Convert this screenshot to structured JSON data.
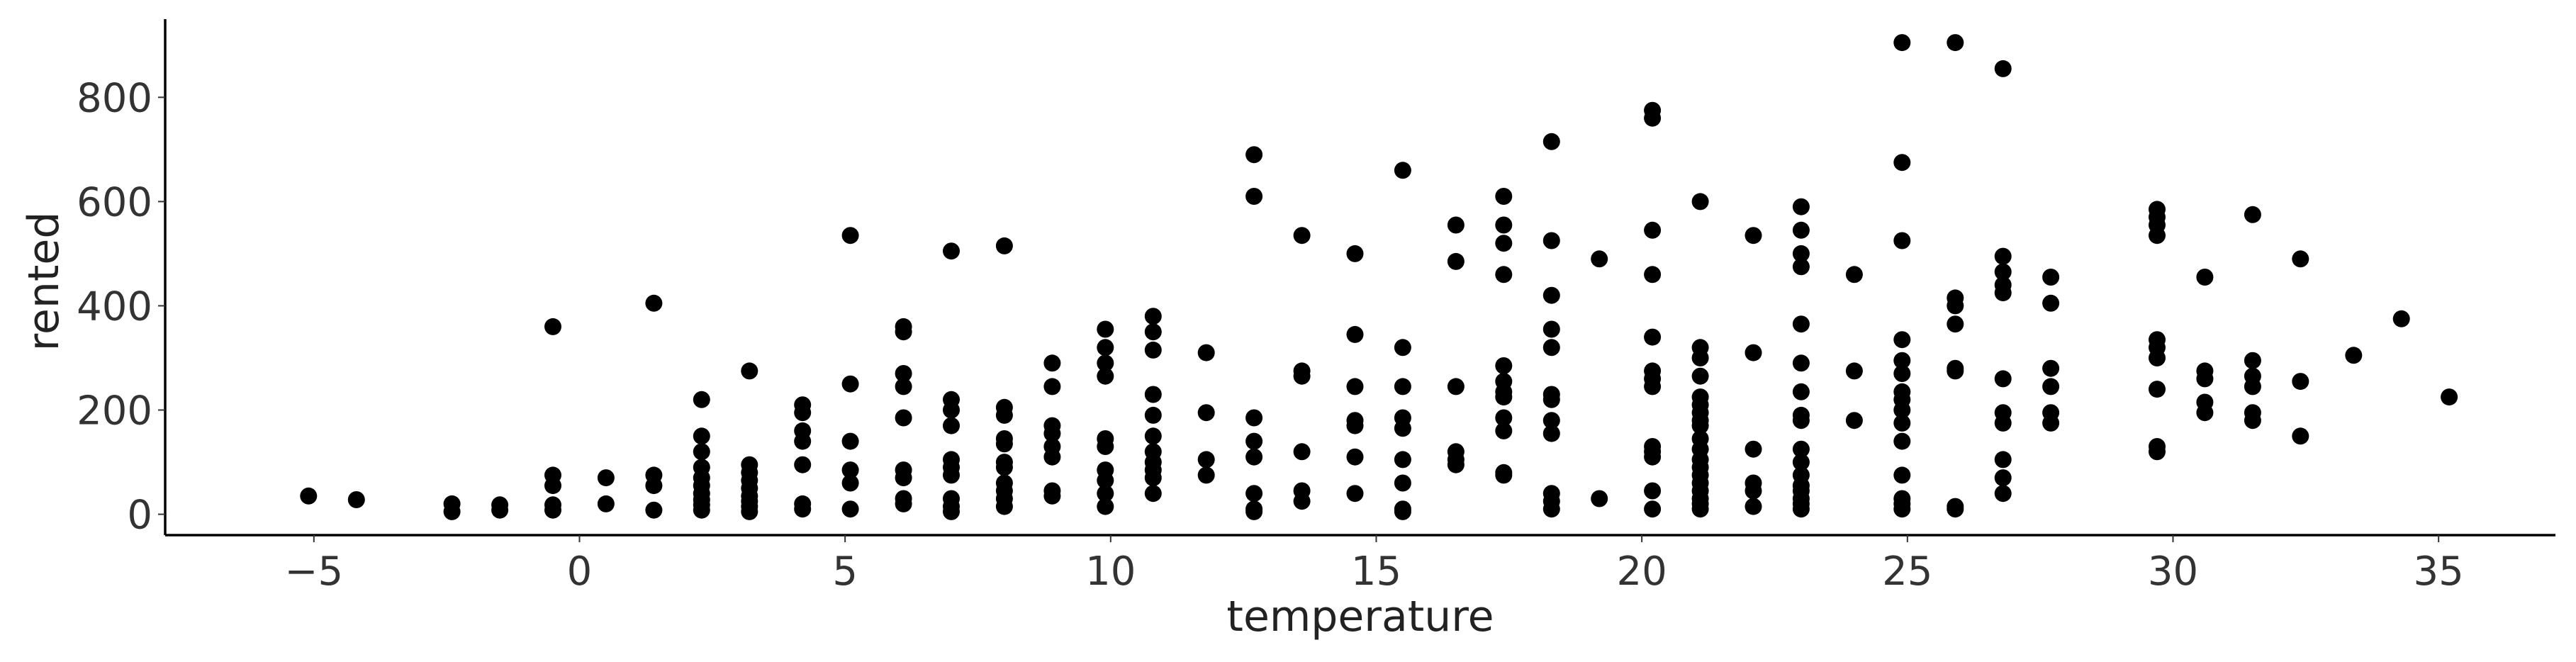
{
  "chart_data": {
    "type": "scatter",
    "title": "",
    "xlabel": "temperature",
    "ylabel": "rented",
    "xlim": [
      -7.8,
      37.2
    ],
    "ylim": [
      -40,
      950
    ],
    "xticks": [
      -5,
      0,
      5,
      10,
      15,
      20,
      25,
      30,
      35
    ],
    "xtick_labels": [
      "−5",
      "0",
      "5",
      "10",
      "15",
      "20",
      "25",
      "30",
      "35"
    ],
    "yticks": [
      0,
      200,
      400,
      600,
      800
    ],
    "ytick_labels": [
      "0",
      "200",
      "400",
      "600",
      "800"
    ],
    "grid": false,
    "marker_color": "#000000",
    "series": [
      {
        "points": [
          [
            -5.1,
            35
          ],
          [
            -4.2,
            28
          ],
          [
            -2.4,
            20
          ],
          [
            -2.4,
            5
          ],
          [
            -1.5,
            18
          ],
          [
            -1.5,
            8
          ],
          [
            -0.5,
            360
          ],
          [
            -0.5,
            75
          ],
          [
            -0.5,
            55
          ],
          [
            -0.5,
            18
          ],
          [
            -0.5,
            8
          ],
          [
            0.5,
            70
          ],
          [
            0.5,
            20
          ],
          [
            1.4,
            405
          ],
          [
            1.4,
            75
          ],
          [
            1.4,
            55
          ],
          [
            1.4,
            8
          ],
          [
            2.3,
            220
          ],
          [
            2.3,
            150
          ],
          [
            2.3,
            120
          ],
          [
            2.3,
            90
          ],
          [
            2.3,
            70
          ],
          [
            2.3,
            55
          ],
          [
            2.3,
            40
          ],
          [
            2.3,
            28
          ],
          [
            2.3,
            18
          ],
          [
            2.3,
            8
          ],
          [
            3.2,
            275
          ],
          [
            3.2,
            95
          ],
          [
            3.2,
            80
          ],
          [
            3.2,
            65
          ],
          [
            3.2,
            50
          ],
          [
            3.2,
            35
          ],
          [
            3.2,
            25
          ],
          [
            3.2,
            15
          ],
          [
            3.2,
            5
          ],
          [
            4.2,
            210
          ],
          [
            4.2,
            195
          ],
          [
            4.2,
            160
          ],
          [
            4.2,
            140
          ],
          [
            4.2,
            95
          ],
          [
            4.2,
            20
          ],
          [
            4.2,
            10
          ],
          [
            5.1,
            535
          ],
          [
            5.1,
            250
          ],
          [
            5.1,
            140
          ],
          [
            5.1,
            85
          ],
          [
            5.1,
            60
          ],
          [
            5.1,
            10
          ],
          [
            6.1,
            360
          ],
          [
            6.1,
            350
          ],
          [
            6.1,
            270
          ],
          [
            6.1,
            245
          ],
          [
            6.1,
            185
          ],
          [
            6.1,
            85
          ],
          [
            6.1,
            70
          ],
          [
            6.1,
            30
          ],
          [
            6.1,
            20
          ],
          [
            7.0,
            505
          ],
          [
            7.0,
            220
          ],
          [
            7.0,
            200
          ],
          [
            7.0,
            170
          ],
          [
            7.0,
            105
          ],
          [
            7.0,
            90
          ],
          [
            7.0,
            75
          ],
          [
            7.0,
            30
          ],
          [
            7.0,
            15
          ],
          [
            7.0,
            5
          ],
          [
            8.0,
            515
          ],
          [
            8.0,
            205
          ],
          [
            8.0,
            190
          ],
          [
            8.0,
            145
          ],
          [
            8.0,
            135
          ],
          [
            8.0,
            100
          ],
          [
            8.0,
            90
          ],
          [
            8.0,
            60
          ],
          [
            8.0,
            45
          ],
          [
            8.0,
            30
          ],
          [
            8.0,
            15
          ],
          [
            8.9,
            290
          ],
          [
            8.9,
            245
          ],
          [
            8.9,
            170
          ],
          [
            8.9,
            155
          ],
          [
            8.9,
            130
          ],
          [
            8.9,
            110
          ],
          [
            8.9,
            45
          ],
          [
            8.9,
            35
          ],
          [
            9.9,
            355
          ],
          [
            9.9,
            320
          ],
          [
            9.9,
            290
          ],
          [
            9.9,
            265
          ],
          [
            9.9,
            145
          ],
          [
            9.9,
            130
          ],
          [
            9.9,
            85
          ],
          [
            9.9,
            65
          ],
          [
            9.9,
            40
          ],
          [
            9.9,
            15
          ],
          [
            10.8,
            380
          ],
          [
            10.8,
            350
          ],
          [
            10.8,
            315
          ],
          [
            10.8,
            230
          ],
          [
            10.8,
            190
          ],
          [
            10.8,
            150
          ],
          [
            10.8,
            120
          ],
          [
            10.8,
            100
          ],
          [
            10.8,
            85
          ],
          [
            10.8,
            70
          ],
          [
            10.8,
            40
          ],
          [
            11.8,
            310
          ],
          [
            11.8,
            195
          ],
          [
            11.8,
            105
          ],
          [
            11.8,
            75
          ],
          [
            12.7,
            690
          ],
          [
            12.7,
            610
          ],
          [
            12.7,
            185
          ],
          [
            12.7,
            140
          ],
          [
            12.7,
            110
          ],
          [
            12.7,
            40
          ],
          [
            12.7,
            10
          ],
          [
            12.7,
            5
          ],
          [
            13.6,
            535
          ],
          [
            13.6,
            275
          ],
          [
            13.6,
            265
          ],
          [
            13.6,
            120
          ],
          [
            13.6,
            45
          ],
          [
            13.6,
            25
          ],
          [
            14.6,
            500
          ],
          [
            14.6,
            345
          ],
          [
            14.6,
            245
          ],
          [
            14.6,
            180
          ],
          [
            14.6,
            170
          ],
          [
            14.6,
            110
          ],
          [
            14.6,
            40
          ],
          [
            15.5,
            660
          ],
          [
            15.5,
            320
          ],
          [
            15.5,
            245
          ],
          [
            15.5,
            185
          ],
          [
            15.5,
            165
          ],
          [
            15.5,
            105
          ],
          [
            15.5,
            60
          ],
          [
            15.5,
            10
          ],
          [
            15.5,
            5
          ],
          [
            16.5,
            555
          ],
          [
            16.5,
            485
          ],
          [
            16.5,
            245
          ],
          [
            16.5,
            120
          ],
          [
            16.5,
            105
          ],
          [
            16.5,
            95
          ],
          [
            17.4,
            610
          ],
          [
            17.4,
            555
          ],
          [
            17.4,
            520
          ],
          [
            17.4,
            460
          ],
          [
            17.4,
            285
          ],
          [
            17.4,
            255
          ],
          [
            17.4,
            235
          ],
          [
            17.4,
            225
          ],
          [
            17.4,
            185
          ],
          [
            17.4,
            160
          ],
          [
            17.4,
            80
          ],
          [
            17.4,
            75
          ],
          [
            18.3,
            715
          ],
          [
            18.3,
            525
          ],
          [
            18.3,
            420
          ],
          [
            18.3,
            355
          ],
          [
            18.3,
            320
          ],
          [
            18.3,
            230
          ],
          [
            18.3,
            220
          ],
          [
            18.3,
            180
          ],
          [
            18.3,
            155
          ],
          [
            18.3,
            40
          ],
          [
            18.3,
            25
          ],
          [
            18.3,
            10
          ],
          [
            19.2,
            490
          ],
          [
            19.2,
            30
          ],
          [
            20.2,
            775
          ],
          [
            20.2,
            760
          ],
          [
            20.2,
            545
          ],
          [
            20.2,
            460
          ],
          [
            20.2,
            340
          ],
          [
            20.2,
            275
          ],
          [
            20.2,
            260
          ],
          [
            20.2,
            245
          ],
          [
            20.2,
            130
          ],
          [
            20.2,
            120
          ],
          [
            20.2,
            110
          ],
          [
            20.2,
            45
          ],
          [
            20.2,
            10
          ],
          [
            21.1,
            600
          ],
          [
            21.1,
            320
          ],
          [
            21.1,
            300
          ],
          [
            21.1,
            265
          ],
          [
            21.1,
            225
          ],
          [
            21.1,
            210
          ],
          [
            21.1,
            195
          ],
          [
            21.1,
            180
          ],
          [
            21.1,
            170
          ],
          [
            21.1,
            145
          ],
          [
            21.1,
            125
          ],
          [
            21.1,
            105
          ],
          [
            21.1,
            90
          ],
          [
            21.1,
            75
          ],
          [
            21.1,
            60
          ],
          [
            21.1,
            45
          ],
          [
            21.1,
            30
          ],
          [
            21.1,
            20
          ],
          [
            21.1,
            10
          ],
          [
            22.1,
            535
          ],
          [
            22.1,
            310
          ],
          [
            22.1,
            125
          ],
          [
            22.1,
            60
          ],
          [
            22.1,
            45
          ],
          [
            22.1,
            15
          ],
          [
            23.0,
            590
          ],
          [
            23.0,
            545
          ],
          [
            23.0,
            500
          ],
          [
            23.0,
            475
          ],
          [
            23.0,
            365
          ],
          [
            23.0,
            290
          ],
          [
            23.0,
            235
          ],
          [
            23.0,
            190
          ],
          [
            23.0,
            180
          ],
          [
            23.0,
            125
          ],
          [
            23.0,
            100
          ],
          [
            23.0,
            75
          ],
          [
            23.0,
            55
          ],
          [
            23.0,
            45
          ],
          [
            23.0,
            30
          ],
          [
            23.0,
            20
          ],
          [
            23.0,
            10
          ],
          [
            24.0,
            460
          ],
          [
            24.0,
            275
          ],
          [
            24.0,
            180
          ],
          [
            24.9,
            905
          ],
          [
            24.9,
            675
          ],
          [
            24.9,
            525
          ],
          [
            24.9,
            335
          ],
          [
            24.9,
            295
          ],
          [
            24.9,
            270
          ],
          [
            24.9,
            235
          ],
          [
            24.9,
            220
          ],
          [
            24.9,
            200
          ],
          [
            24.9,
            175
          ],
          [
            24.9,
            140
          ],
          [
            24.9,
            75
          ],
          [
            24.9,
            30
          ],
          [
            24.9,
            20
          ],
          [
            24.9,
            10
          ],
          [
            25.9,
            905
          ],
          [
            25.9,
            415
          ],
          [
            25.9,
            400
          ],
          [
            25.9,
            365
          ],
          [
            25.9,
            280
          ],
          [
            25.9,
            275
          ],
          [
            25.9,
            15
          ],
          [
            25.9,
            10
          ],
          [
            26.8,
            855
          ],
          [
            26.8,
            495
          ],
          [
            26.8,
            465
          ],
          [
            26.8,
            440
          ],
          [
            26.8,
            425
          ],
          [
            26.8,
            260
          ],
          [
            26.8,
            195
          ],
          [
            26.8,
            175
          ],
          [
            26.8,
            105
          ],
          [
            26.8,
            70
          ],
          [
            26.8,
            40
          ],
          [
            27.7,
            455
          ],
          [
            27.7,
            405
          ],
          [
            27.7,
            280
          ],
          [
            27.7,
            245
          ],
          [
            27.7,
            195
          ],
          [
            27.7,
            175
          ],
          [
            29.7,
            585
          ],
          [
            29.7,
            570
          ],
          [
            29.7,
            555
          ],
          [
            29.7,
            535
          ],
          [
            29.7,
            335
          ],
          [
            29.7,
            320
          ],
          [
            29.7,
            300
          ],
          [
            29.7,
            240
          ],
          [
            29.7,
            130
          ],
          [
            29.7,
            120
          ],
          [
            30.6,
            455
          ],
          [
            30.6,
            275
          ],
          [
            30.6,
            260
          ],
          [
            30.6,
            215
          ],
          [
            30.6,
            195
          ],
          [
            31.5,
            575
          ],
          [
            31.5,
            295
          ],
          [
            31.5,
            265
          ],
          [
            31.5,
            245
          ],
          [
            31.5,
            195
          ],
          [
            31.5,
            180
          ],
          [
            32.4,
            490
          ],
          [
            32.4,
            255
          ],
          [
            32.4,
            150
          ],
          [
            33.4,
            305
          ],
          [
            34.3,
            375
          ],
          [
            35.2,
            225
          ]
        ]
      }
    ]
  }
}
